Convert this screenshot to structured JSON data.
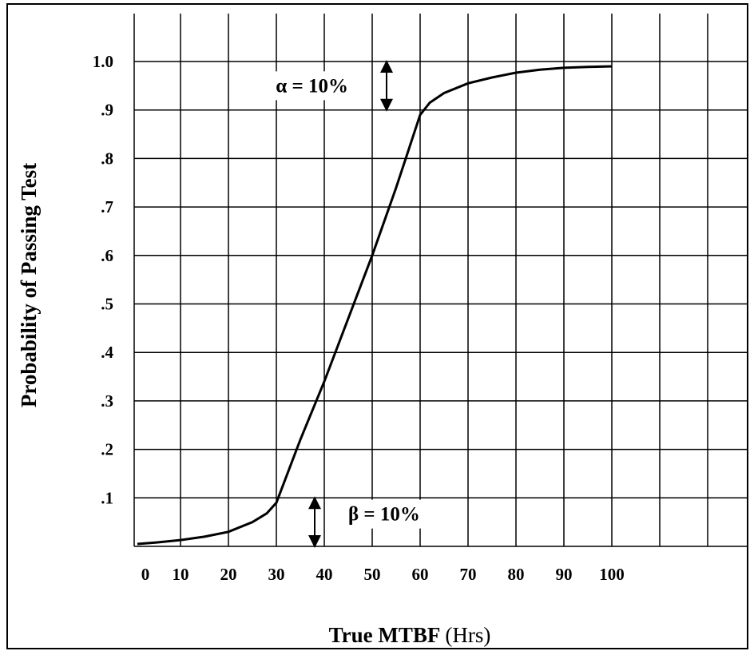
{
  "chart_data": {
    "type": "line",
    "title": "",
    "xlabel_bold": "True MTBF",
    "xlabel_unit": "(Hrs)",
    "ylabel": "Probability of Passing Test",
    "xlim": [
      0,
      125
    ],
    "ylim": [
      0,
      1.0
    ],
    "x_ticks": [
      0,
      10,
      20,
      30,
      40,
      50,
      60,
      70,
      80,
      90,
      100
    ],
    "x_tick_labels": [
      "0",
      "10",
      "20",
      "30",
      "40",
      "50",
      "60",
      "70",
      "80",
      "90",
      "100"
    ],
    "y_ticks": [
      0.1,
      0.2,
      0.3,
      0.4,
      0.5,
      0.6,
      0.7,
      0.8,
      0.9,
      1.0
    ],
    "y_tick_labels": [
      ".1",
      ".2",
      ".3",
      ".4",
      ".5",
      ".6",
      ".7",
      ".8",
      ".9",
      "1.0"
    ],
    "grid": true,
    "series": [
      {
        "x": [
          1,
          5,
          10,
          15,
          20,
          25,
          28,
          30,
          35,
          40,
          45,
          50,
          55,
          60,
          62,
          65,
          70,
          75,
          80,
          85,
          90,
          95,
          100
        ],
        "y": [
          0.005,
          0.008,
          0.013,
          0.02,
          0.03,
          0.05,
          0.068,
          0.09,
          0.22,
          0.34,
          0.47,
          0.6,
          0.74,
          0.89,
          0.915,
          0.935,
          0.955,
          0.967,
          0.977,
          0.983,
          0.987,
          0.989,
          0.99
        ]
      }
    ],
    "annotations": [
      {
        "text": "α = 10%",
        "x": 53,
        "arrow_y": [
          1.0,
          0.9
        ]
      },
      {
        "text": "β = 10%",
        "x": 38,
        "arrow_y": [
          0.1,
          0.0
        ]
      }
    ]
  },
  "colors": {
    "line": "#000000",
    "grid": "#000000",
    "background": "#ffffff"
  }
}
